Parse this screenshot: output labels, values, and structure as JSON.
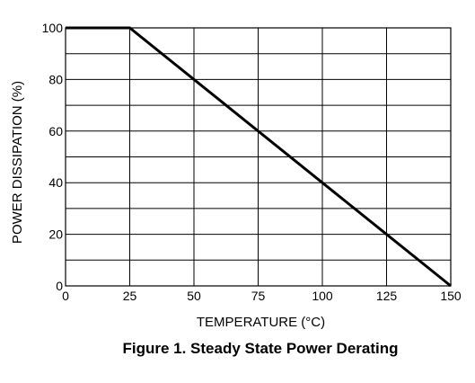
{
  "chart_data": {
    "type": "line",
    "title": "Figure 1. Steady State Power Derating",
    "xlabel": "TEMPERATURE (°C)",
    "ylabel": "POWER DISSIPATION (%)",
    "xlim": [
      0,
      150
    ],
    "ylim": [
      0,
      100
    ],
    "x_ticks": [
      0,
      25,
      50,
      75,
      100,
      125,
      150
    ],
    "y_ticks": [
      0,
      20,
      40,
      60,
      80,
      100
    ],
    "grid": true,
    "series": [
      {
        "x": [
          0,
          25,
          150
        ],
        "y": [
          100,
          100,
          0
        ]
      }
    ]
  }
}
